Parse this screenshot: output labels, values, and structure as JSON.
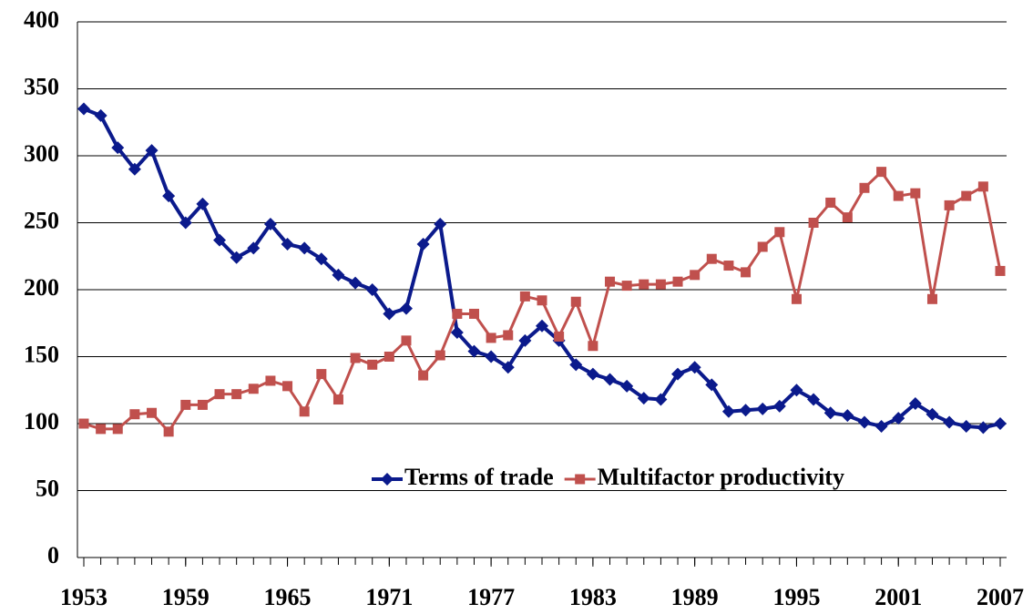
{
  "chart_data": {
    "type": "line",
    "x": [
      1953,
      1954,
      1955,
      1956,
      1957,
      1958,
      1959,
      1960,
      1961,
      1962,
      1963,
      1964,
      1965,
      1966,
      1967,
      1968,
      1969,
      1970,
      1971,
      1972,
      1973,
      1974,
      1975,
      1976,
      1977,
      1978,
      1979,
      1980,
      1981,
      1982,
      1983,
      1984,
      1985,
      1986,
      1987,
      1988,
      1989,
      1990,
      1991,
      1992,
      1993,
      1994,
      1995,
      1996,
      1997,
      1998,
      1999,
      2000,
      2001,
      2002,
      2003,
      2004,
      2005,
      2006,
      2007
    ],
    "series": [
      {
        "name": "Terms of trade",
        "color": "#0b1a8c",
        "marker": "diamond",
        "values": [
          335,
          330,
          306,
          290,
          304,
          270,
          250,
          264,
          237,
          224,
          231,
          249,
          234,
          231,
          223,
          211,
          205,
          200,
          182,
          186,
          234,
          249,
          168,
          154,
          150,
          142,
          162,
          173,
          162,
          144,
          137,
          133,
          128,
          119,
          118,
          137,
          142,
          129,
          109,
          110,
          111,
          113,
          125,
          118,
          108,
          106,
          101,
          98,
          104,
          115,
          107,
          101,
          98,
          97,
          100
        ]
      },
      {
        "name": "Multifactor productivity",
        "color": "#c0504d",
        "marker": "square",
        "values": [
          100,
          96,
          96,
          107,
          108,
          94,
          114,
          114,
          122,
          122,
          126,
          132,
          128,
          109,
          137,
          118,
          149,
          144,
          150,
          162,
          136,
          151,
          182,
          182,
          164,
          166,
          195,
          192,
          165,
          191,
          158,
          206,
          203,
          204,
          204,
          206,
          211,
          223,
          218,
          213,
          232,
          243,
          193,
          250,
          265,
          254,
          276,
          288,
          270,
          272,
          193,
          263,
          270,
          277,
          214
        ]
      }
    ],
    "xlim": [
      1953,
      2007
    ],
    "xticks": [
      1953,
      1959,
      1965,
      1971,
      1977,
      1983,
      1989,
      1995,
      2001,
      2007
    ],
    "ylim": [
      0,
      400
    ],
    "yticks": [
      0,
      50,
      100,
      150,
      200,
      250,
      300,
      350,
      400
    ],
    "grid": true,
    "legend": "lower center"
  }
}
